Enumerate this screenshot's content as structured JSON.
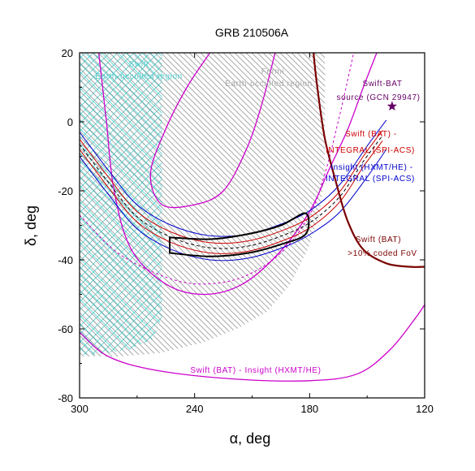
{
  "chart_data": {
    "type": "line",
    "title": "GRB 210506A",
    "xlabel": "α, deg",
    "ylabel": "δ, deg",
    "xlim": [
      300,
      120
    ],
    "ylim": [
      -80,
      20
    ],
    "x_reversed": true,
    "x_ticks": [
      300,
      240,
      180,
      120
    ],
    "y_ticks": [
      20,
      0,
      -20,
      -40,
      -60,
      -80
    ],
    "grid": false,
    "legend": "none",
    "regions": [
      {
        "label": "Swift\nEarth-occulted region",
        "color": "#52d2d2",
        "hatch": "cross",
        "points": [
          [
            300,
            20
          ],
          [
            257,
            20
          ],
          [
            257,
            -57
          ],
          [
            262,
            -63
          ],
          [
            274,
            -66
          ],
          [
            292,
            -67.5
          ],
          [
            300,
            -67.5
          ]
        ]
      },
      {
        "label": "Fermi\nEarth-occulted region",
        "color": "#9a9a9a",
        "hatch": "diagonal",
        "points": [
          [
            300,
            20
          ],
          [
            172,
            20
          ],
          [
            172,
            -15
          ],
          [
            175,
            -27
          ],
          [
            181,
            -37
          ],
          [
            190,
            -47
          ],
          [
            202,
            -55
          ],
          [
            218,
            -60
          ],
          [
            236,
            -64
          ],
          [
            258,
            -67
          ],
          [
            280,
            -68
          ],
          [
            300,
            -68
          ]
        ]
      }
    ],
    "series": [
      {
        "color": "#cc00cc",
        "width": 1.3,
        "points": [
          [
            232,
            20
          ],
          [
            244,
            10
          ],
          [
            255,
            -2
          ],
          [
            263,
            -15
          ],
          [
            257,
            -24
          ],
          [
            240,
            -24
          ],
          [
            225,
            -20
          ],
          [
            213,
            -8
          ],
          [
            205,
            5
          ],
          [
            198,
            20
          ]
        ]
      },
      {
        "color": "#cc00cc",
        "width": 1.3,
        "points": [
          [
            290,
            20
          ],
          [
            286,
            0
          ],
          [
            282,
            -20
          ],
          [
            273,
            -37
          ],
          [
            255,
            -47
          ],
          [
            235,
            -50
          ],
          [
            215,
            -47
          ],
          [
            196,
            -38
          ],
          [
            180,
            -26
          ],
          [
            170,
            -14
          ],
          [
            160,
            -2
          ],
          [
            152,
            10
          ],
          [
            145,
            20
          ]
        ]
      },
      {
        "color": "#cc00cc",
        "width": 1.3,
        "points": [
          [
            300,
            -61
          ],
          [
            285,
            -68
          ],
          [
            260,
            -72
          ],
          [
            220,
            -74.5
          ],
          [
            180,
            -75
          ],
          [
            155,
            -73
          ],
          [
            138,
            -66
          ],
          [
            125,
            -57
          ],
          [
            120,
            -53
          ]
        ]
      },
      {
        "color": "#cc00cc",
        "width": 1,
        "dash": "3,3",
        "points": [
          [
            300,
            -27
          ],
          [
            280,
            -38
          ],
          [
            255,
            -45
          ],
          [
            236,
            -47
          ],
          [
            215,
            -45
          ],
          [
            195,
            -38
          ],
          [
            180,
            -27
          ],
          [
            172,
            -15
          ],
          [
            166,
            -2
          ],
          [
            161,
            10
          ],
          [
            157,
            20
          ]
        ]
      },
      {
        "color": "#cc0000",
        "width": 1,
        "points": [
          [
            300,
            -5
          ],
          [
            285,
            -16
          ],
          [
            270,
            -26
          ],
          [
            252,
            -32
          ],
          [
            232,
            -35
          ],
          [
            212,
            -34.5
          ],
          [
            192,
            -31
          ],
          [
            178,
            -27
          ],
          [
            164,
            -20
          ],
          [
            152,
            -10
          ],
          [
            142,
            -2.5
          ]
        ]
      },
      {
        "color": "#cc0000",
        "width": 1,
        "points": [
          [
            300,
            -8
          ],
          [
            285,
            -19
          ],
          [
            270,
            -29
          ],
          [
            252,
            -35
          ],
          [
            232,
            -38
          ],
          [
            212,
            -37.5
          ],
          [
            192,
            -34
          ],
          [
            178,
            -30
          ],
          [
            164,
            -23
          ],
          [
            152,
            -13
          ],
          [
            142,
            -5.5
          ]
        ]
      },
      {
        "color": "#000000",
        "width": 1,
        "dash": "4,3",
        "points": [
          [
            300,
            -6.5
          ],
          [
            285,
            -17.5
          ],
          [
            270,
            -27.5
          ],
          [
            252,
            -33.5
          ],
          [
            232,
            -36.5
          ],
          [
            212,
            -36
          ],
          [
            192,
            -32.5
          ],
          [
            178,
            -28.5
          ],
          [
            164,
            -21.5
          ],
          [
            152,
            -11.5
          ],
          [
            142,
            -4
          ]
        ]
      },
      {
        "color": "#0000cc",
        "width": 1,
        "points": [
          [
            300,
            -3
          ],
          [
            285,
            -14
          ],
          [
            270,
            -24
          ],
          [
            252,
            -30
          ],
          [
            232,
            -33
          ],
          [
            212,
            -32.5
          ],
          [
            192,
            -29
          ],
          [
            178,
            -25
          ],
          [
            164,
            -18
          ],
          [
            150,
            -7
          ],
          [
            140,
            0.5
          ]
        ]
      },
      {
        "color": "#0000cc",
        "width": 1,
        "points": [
          [
            300,
            -10
          ],
          [
            285,
            -21
          ],
          [
            270,
            -31
          ],
          [
            252,
            -37
          ],
          [
            232,
            -40
          ],
          [
            212,
            -39.5
          ],
          [
            192,
            -36
          ],
          [
            178,
            -32
          ],
          [
            164,
            -26
          ],
          [
            150,
            -16
          ],
          [
            140,
            -8
          ]
        ]
      },
      {
        "color": "#7a0000",
        "width": 2.2,
        "points": [
          [
            178,
            20
          ],
          [
            176,
            10
          ],
          [
            172,
            -5
          ],
          [
            166,
            -18
          ],
          [
            160,
            -29
          ],
          [
            152,
            -37
          ],
          [
            140,
            -41
          ],
          [
            128,
            -42
          ],
          [
            120,
            -42
          ]
        ]
      },
      {
        "color": "#000000",
        "width": 2,
        "closed": true,
        "points": [
          [
            253,
            -33.5
          ],
          [
            232,
            -34
          ],
          [
            212,
            -32.5
          ],
          [
            195,
            -30
          ],
          [
            182,
            -26.5
          ],
          [
            182,
            -32.5
          ],
          [
            195,
            -35.5
          ],
          [
            212,
            -38
          ],
          [
            232,
            -39
          ],
          [
            253,
            -38
          ]
        ]
      }
    ],
    "source_point": {
      "x": 137,
      "y": 4.5,
      "marker": "star",
      "color": "#660066"
    },
    "annotations": [
      {
        "text": "Swift-BAT\nsource (GCN 29947)",
        "color": "#660066"
      },
      {
        "text": "Swift (BAT) -\nINTEGRAL (SPI-ACS)",
        "color": "#cc0000"
      },
      {
        "text": "Insight (HXMT/HE) -\nINTEGRAL (SPI-ACS)",
        "color": "#0000cc"
      },
      {
        "text": "Swift (BAT)\n>10% coded FoV",
        "color": "#7a0000"
      },
      {
        "text": "Swift (BAT) - Insight (HXMT/HE)",
        "color": "#cc00cc"
      }
    ]
  }
}
